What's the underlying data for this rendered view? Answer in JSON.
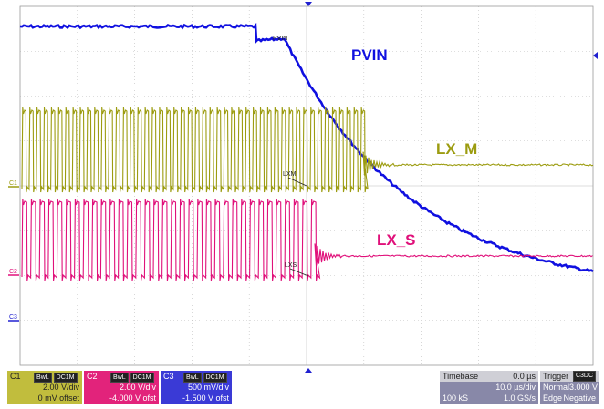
{
  "traces": {
    "pvin": {
      "label": "PVIN",
      "small_label": "PVIN",
      "color": "#1010e0"
    },
    "lxm": {
      "label": "LX_M",
      "small_label": "LXM",
      "color": "#9c9c10"
    },
    "lxs": {
      "label": "LX_S",
      "small_label": "LXS",
      "color": "#e0107a"
    }
  },
  "channel_markers": {
    "c1": "C1",
    "c2": "C2",
    "c3": "C3"
  },
  "panels": {
    "c1": {
      "name": "C1",
      "badge1": "BwL",
      "badge2": "DC1M",
      "volts_div": "2.00 V/div",
      "offset": "0 mV offset"
    },
    "c2": {
      "name": "C2",
      "badge1": "BwL",
      "badge2": "DC1M",
      "volts_div": "2.00 V/div",
      "offset": "-4.000 V ofst"
    },
    "c3": {
      "name": "C3",
      "badge1": "BwL",
      "badge2": "DC1M",
      "volts_div": "500 mV/div",
      "offset": "-1.500 V ofst"
    },
    "timebase": {
      "label": "Timebase",
      "delay": "0.0 µs",
      "time_div": "10.0 µs/div",
      "samples": "100 kS",
      "rate": "1.0 GS/s"
    },
    "trigger": {
      "label": "Trigger",
      "badge": "C3DC",
      "mode": "Normal",
      "level": "3.000 V",
      "type": "Edge",
      "slope": "Negative"
    }
  },
  "colors": {
    "grid": "#bdbdbd",
    "axis": "#9a9a9a",
    "marker_blue": "#2020d0"
  }
}
